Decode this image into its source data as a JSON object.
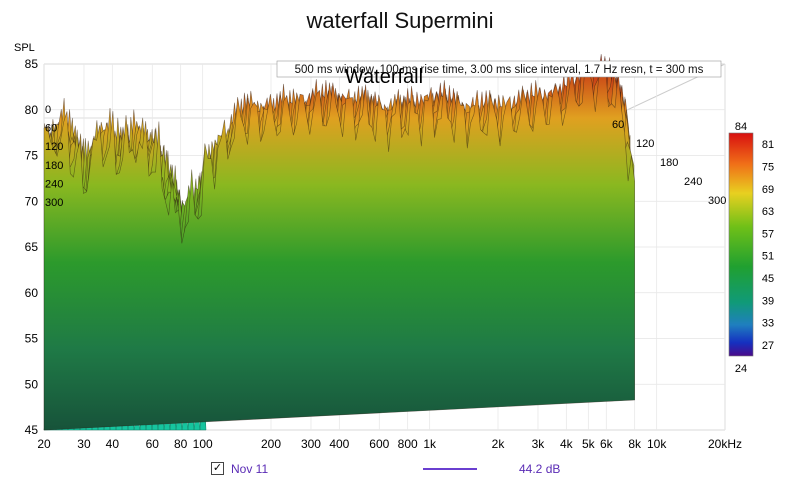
{
  "chart_data": {
    "type": "waterfall",
    "title": "waterfall Supermini",
    "subtitle": "500 ms window, 100 ms rise time, 3.00 ms slice interval, 1.7 Hz resn, t = 300 ms",
    "inner_title": "Waterfall",
    "ylabel": "SPL",
    "ylim": [
      45,
      85
    ],
    "y_ticks": [
      "85",
      "80",
      "75",
      "70",
      "65",
      "60",
      "55",
      "50",
      "45"
    ],
    "x_scale": "log",
    "xlim": [
      20,
      20000
    ],
    "x_ticks": [
      {
        "v": 20,
        "label": "20"
      },
      {
        "v": 30,
        "label": "30"
      },
      {
        "v": 40,
        "label": "40"
      },
      {
        "v": 60,
        "label": "60"
      },
      {
        "v": 80,
        "label": "80"
      },
      {
        "v": 100,
        "label": "100"
      },
      {
        "v": 200,
        "label": "200"
      },
      {
        "v": 300,
        "label": "300"
      },
      {
        "v": 400,
        "label": "400"
      },
      {
        "v": 600,
        "label": "600"
      },
      {
        "v": 800,
        "label": "800"
      },
      {
        "v": 1000,
        "label": "1k"
      },
      {
        "v": 2000,
        "label": "2k"
      },
      {
        "v": 3000,
        "label": "3k"
      },
      {
        "v": 4000,
        "label": "4k"
      },
      {
        "v": 5000,
        "label": "5k"
      },
      {
        "v": 6000,
        "label": "6k"
      },
      {
        "v": 8000,
        "label": "8k"
      },
      {
        "v": 10000,
        "label": "10k"
      },
      {
        "v": 20000,
        "label": "20kHz"
      }
    ],
    "time_ticks": [
      "0",
      "60",
      "120",
      "180",
      "240",
      "300"
    ],
    "colorbar": {
      "range": [
        24,
        84
      ],
      "labels": [
        "84",
        "81",
        "75",
        "69",
        "63",
        "57",
        "51",
        "45",
        "39",
        "33",
        "27",
        "24"
      ]
    },
    "front_slice": {
      "freq": [
        20,
        25,
        30,
        35,
        40,
        50,
        60,
        70,
        80,
        100,
        150,
        200,
        300,
        400,
        600,
        800,
        1000,
        1500,
        2000,
        3000,
        4000,
        5000,
        6000,
        7000,
        8000
      ],
      "spl": [
        78,
        79,
        74,
        79,
        77,
        78,
        77,
        73,
        69,
        73,
        79,
        79,
        80,
        80,
        79,
        79,
        80,
        79,
        79,
        80,
        81,
        83,
        83,
        80,
        71
      ]
    },
    "series": [
      {
        "name": "Nov 11",
        "value": "44.2 dB",
        "color": "#6a3fd0",
        "checked": true
      }
    ]
  },
  "legend": {
    "check_mark": "✓",
    "name": "Nov 11",
    "value": "44.2 dB"
  }
}
